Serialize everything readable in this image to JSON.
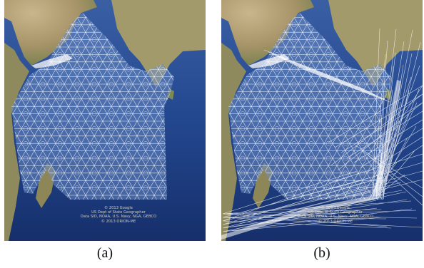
{
  "panels": [
    {
      "id": "a",
      "caption": "(a)",
      "network": "mesh",
      "credits": [
        "© 2013 Google",
        "US Dept of State Geographer",
        "Data SIO, NOAA, U.S. Navy, NGA, GEBCO",
        "© 2013 ORION-ME"
      ]
    },
    {
      "id": "b",
      "caption": "(b)",
      "network": "mesh-with-long-links",
      "credits": [
        "© 2013 Google",
        "US Dept of State Geographer",
        "Data SIO, NOAA, U.S. Navy, NGA, GEBCO",
        "© 2013 ORION-ME"
      ]
    }
  ],
  "colors": {
    "ocean_deep": "#1c3f86",
    "ocean_shelf": "#6f8fc4",
    "land_desert": "#b8a37a",
    "land_green": "#7d8a55",
    "mesh": "#ffffff"
  }
}
